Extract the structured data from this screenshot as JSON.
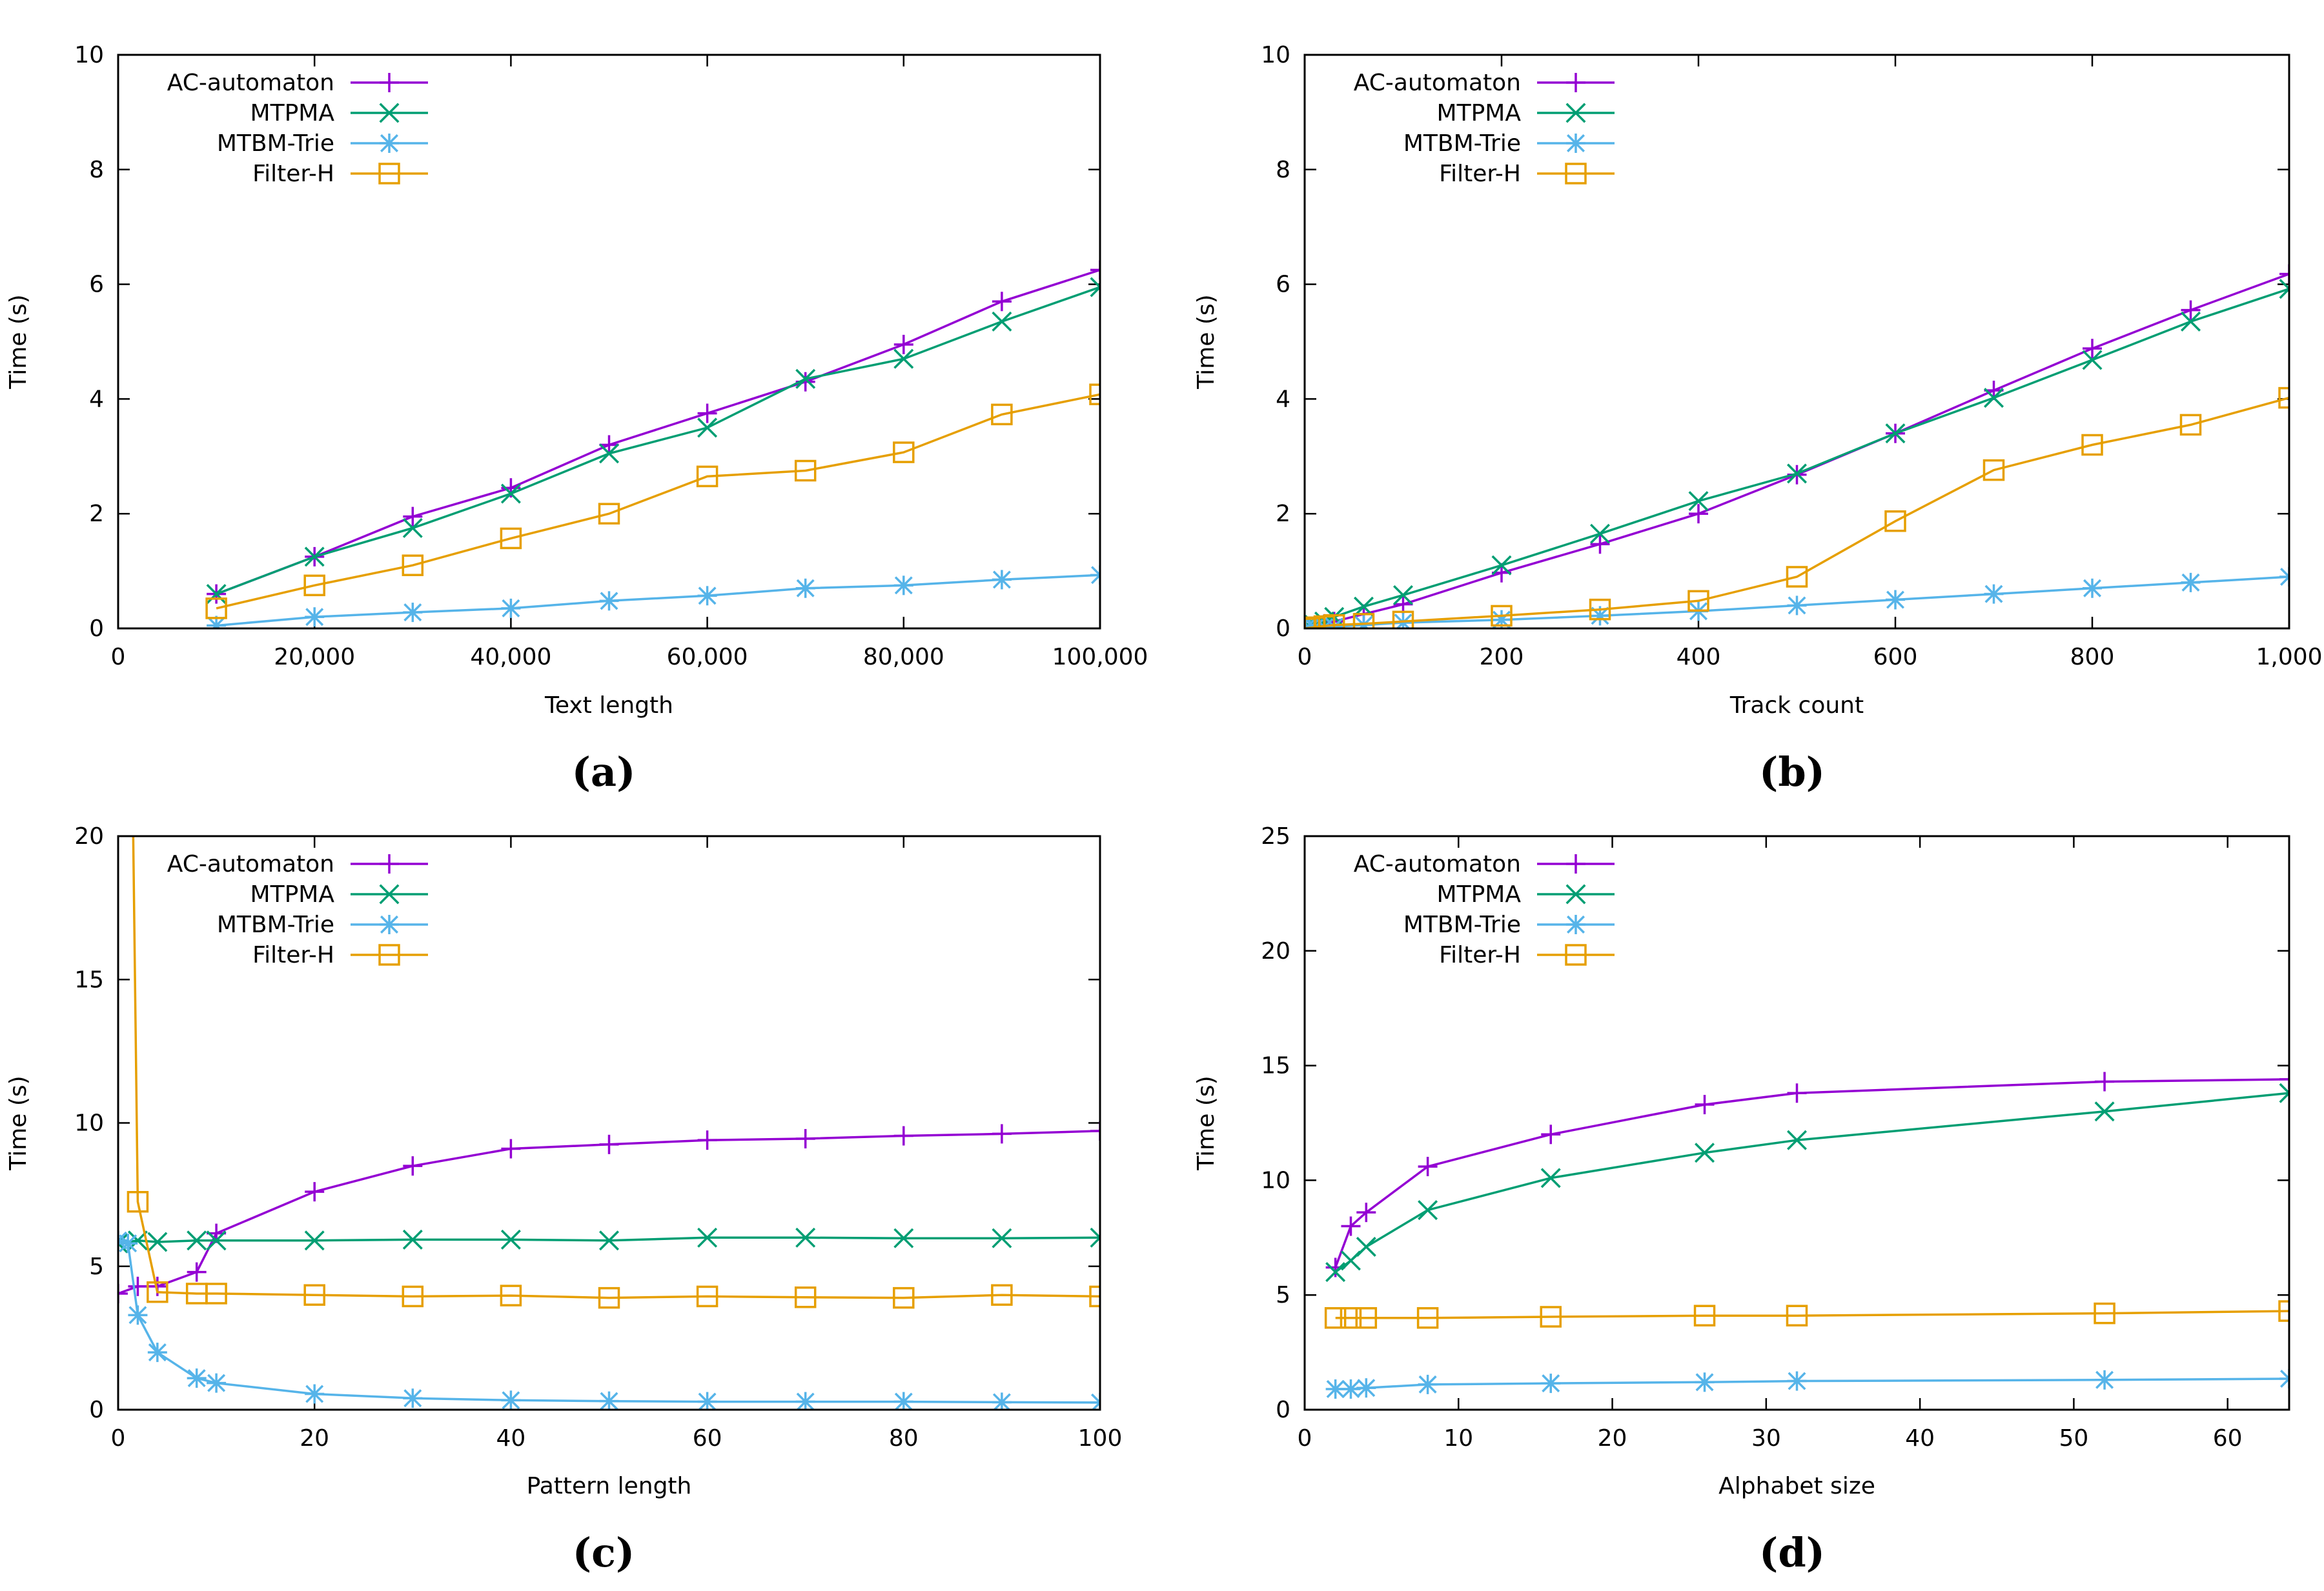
{
  "colors": {
    "AC-automaton": "#9400d3",
    "MTPMA": "#009e73",
    "MTBM-Trie": "#56b4e9",
    "Filter-H": "#e69f00"
  },
  "chart_data": [
    {
      "type": "line",
      "panel": "(a)",
      "xlabel": "Text length",
      "ylabel": "Time (s)",
      "xlim": [
        0,
        100000
      ],
      "ylim": [
        0,
        10
      ],
      "xticks": [
        0,
        20000,
        40000,
        60000,
        80000,
        100000
      ],
      "xtick_labels": [
        "0",
        "20,000",
        "40,000",
        "60,000",
        "80,000",
        "100,000"
      ],
      "yticks": [
        0,
        2,
        4,
        6,
        8,
        10
      ],
      "ytick_labels": [
        "0",
        "2",
        "4",
        "6",
        "8",
        "10"
      ],
      "legend": [
        "AC-automaton",
        "MTPMA",
        "MTBM-Trie",
        "Filter-H"
      ],
      "legend_position": "top-left",
      "series": [
        {
          "name": "AC-automaton",
          "marker": "plus",
          "x": [
            10000,
            20000,
            30000,
            40000,
            50000,
            60000,
            70000,
            80000,
            90000,
            100000
          ],
          "values": [
            0.6,
            1.25,
            1.95,
            2.45,
            3.2,
            3.75,
            4.3,
            4.95,
            5.7,
            6.25
          ]
        },
        {
          "name": "MTPMA",
          "marker": "x",
          "x": [
            10000,
            20000,
            30000,
            40000,
            50000,
            60000,
            70000,
            80000,
            90000,
            100000
          ],
          "values": [
            0.6,
            1.25,
            1.75,
            2.35,
            3.05,
            3.5,
            4.35,
            4.7,
            5.35,
            5.95
          ]
        },
        {
          "name": "MTBM-Trie",
          "marker": "star",
          "x": [
            10000,
            20000,
            30000,
            40000,
            50000,
            60000,
            70000,
            80000,
            90000,
            100000
          ],
          "values": [
            0.05,
            0.2,
            0.28,
            0.35,
            0.48,
            0.57,
            0.7,
            0.75,
            0.85,
            0.93
          ]
        },
        {
          "name": "Filter-H",
          "marker": "square",
          "x": [
            10000,
            20000,
            30000,
            40000,
            50000,
            60000,
            70000,
            80000,
            90000,
            100000
          ],
          "values": [
            0.35,
            0.75,
            1.1,
            1.57,
            2.0,
            2.65,
            2.75,
            3.07,
            3.73,
            4.08
          ]
        }
      ]
    },
    {
      "type": "line",
      "panel": "(b)",
      "xlabel": "Track count",
      "ylabel": "Time (s)",
      "xlim": [
        0,
        1000
      ],
      "ylim": [
        0,
        10
      ],
      "xticks": [
        0,
        200,
        400,
        600,
        800,
        1000
      ],
      "xtick_labels": [
        "0",
        "200",
        "400",
        "600",
        "800",
        "1,000"
      ],
      "yticks": [
        0,
        2,
        4,
        6,
        8,
        10
      ],
      "ytick_labels": [
        "0",
        "2",
        "4",
        "6",
        "8",
        "10"
      ],
      "legend": [
        "AC-automaton",
        "MTPMA",
        "MTBM-Trie",
        "Filter-H"
      ],
      "legend_position": "top-left",
      "series": [
        {
          "name": "AC-automaton",
          "marker": "plus",
          "x": [
            1,
            5,
            10,
            20,
            30,
            60,
            100,
            200,
            300,
            400,
            500,
            600,
            700,
            800,
            900,
            1000
          ],
          "values": [
            0.01,
            0.02,
            0.04,
            0.08,
            0.12,
            0.25,
            0.42,
            0.97,
            1.47,
            2.0,
            2.68,
            3.4,
            4.15,
            4.88,
            5.55,
            6.18
          ]
        },
        {
          "name": "MTPMA",
          "marker": "x",
          "x": [
            1,
            5,
            10,
            20,
            30,
            60,
            100,
            200,
            300,
            400,
            500,
            600,
            700,
            800,
            900,
            1000
          ],
          "values": [
            0.01,
            0.03,
            0.06,
            0.12,
            0.2,
            0.38,
            0.58,
            1.1,
            1.65,
            2.22,
            2.7,
            3.4,
            4.02,
            4.68,
            5.35,
            5.92
          ]
        },
        {
          "name": "MTBM-Trie",
          "marker": "star",
          "x": [
            1,
            5,
            10,
            20,
            30,
            60,
            100,
            200,
            300,
            400,
            500,
            600,
            700,
            800,
            900,
            1000
          ],
          "values": [
            0.0,
            0.0,
            0.01,
            0.02,
            0.03,
            0.06,
            0.1,
            0.15,
            0.22,
            0.3,
            0.4,
            0.5,
            0.6,
            0.7,
            0.8,
            0.9
          ]
        },
        {
          "name": "Filter-H",
          "marker": "square",
          "x": [
            1,
            5,
            10,
            20,
            30,
            60,
            100,
            200,
            300,
            400,
            500,
            600,
            700,
            800,
            900,
            1000
          ],
          "values": [
            0.0,
            0.01,
            0.02,
            0.04,
            0.06,
            0.08,
            0.12,
            0.22,
            0.33,
            0.48,
            0.9,
            1.87,
            2.76,
            3.2,
            3.55,
            4.02
          ]
        }
      ]
    },
    {
      "type": "line",
      "panel": "(c)",
      "xlabel": "Pattern length",
      "ylabel": "Time (s)",
      "xlim": [
        0,
        100
      ],
      "ylim": [
        0,
        20
      ],
      "xticks": [
        0,
        20,
        40,
        60,
        80,
        100
      ],
      "xtick_labels": [
        "0",
        "20",
        "40",
        "60",
        "80",
        "100"
      ],
      "yticks": [
        0,
        5,
        10,
        15,
        20
      ],
      "ytick_labels": [
        "0",
        "5",
        "10",
        "15",
        "20"
      ],
      "legend": [
        "AC-automaton",
        "MTPMA",
        "MTBM-Trie",
        "Filter-H"
      ],
      "legend_position": "top-left",
      "series": [
        {
          "name": "AC-automaton",
          "marker": "plus",
          "x": [
            0,
            2,
            4,
            8,
            10,
            20,
            30,
            40,
            50,
            60,
            70,
            80,
            90,
            100
          ],
          "values": [
            4.05,
            4.3,
            4.3,
            4.8,
            6.15,
            7.6,
            8.5,
            9.1,
            9.25,
            9.4,
            9.45,
            9.55,
            9.62,
            9.72
          ]
        },
        {
          "name": "MTPMA",
          "marker": "x",
          "x": [
            0,
            2,
            4,
            8,
            10,
            20,
            30,
            40,
            50,
            60,
            70,
            80,
            90,
            100
          ],
          "values": [
            5.8,
            5.9,
            5.85,
            5.9,
            5.9,
            5.9,
            5.93,
            5.93,
            5.9,
            6.0,
            6.0,
            5.98,
            5.98,
            6.0
          ]
        },
        {
          "name": "MTBM-Trie",
          "marker": "star",
          "x": [
            0,
            1,
            2,
            4,
            8,
            10,
            20,
            30,
            40,
            50,
            60,
            70,
            80,
            90,
            100
          ],
          "values": [
            5.9,
            5.8,
            3.3,
            2.0,
            1.1,
            0.93,
            0.55,
            0.4,
            0.33,
            0.3,
            0.28,
            0.28,
            0.28,
            0.26,
            0.25
          ]
        },
        {
          "name": "Filter-H",
          "marker": "square",
          "x": [
            2,
            4,
            8,
            10,
            20,
            30,
            40,
            50,
            60,
            70,
            80,
            90,
            100
          ],
          "values": [
            7.25,
            4.1,
            4.05,
            4.05,
            4.0,
            3.95,
            3.98,
            3.9,
            3.95,
            3.92,
            3.9,
            4.0,
            3.95
          ]
        }
      ]
    },
    {
      "type": "line",
      "panel": "(d)",
      "xlabel": "Alphabet size",
      "ylabel": "Time (s)",
      "xlim": [
        0,
        64
      ],
      "ylim": [
        0,
        25
      ],
      "xticks": [
        0,
        10,
        20,
        30,
        40,
        50,
        60
      ],
      "xtick_labels": [
        "0",
        "10",
        "20",
        "30",
        "40",
        "50",
        "60"
      ],
      "yticks": [
        0,
        5,
        10,
        15,
        20,
        25
      ],
      "ytick_labels": [
        "0",
        "5",
        "10",
        "15",
        "20",
        "25"
      ],
      "legend": [
        "AC-automaton",
        "MTPMA",
        "MTBM-Trie",
        "Filter-H"
      ],
      "legend_position": "top-left",
      "series": [
        {
          "name": "AC-automaton",
          "marker": "plus",
          "x": [
            2,
            3,
            4,
            8,
            16,
            26,
            32,
            52,
            64
          ],
          "values": [
            6.2,
            8.0,
            8.6,
            10.6,
            12.0,
            13.3,
            13.8,
            14.3,
            14.4
          ]
        },
        {
          "name": "MTPMA",
          "marker": "x",
          "x": [
            2,
            3,
            4,
            8,
            16,
            26,
            32,
            52,
            64
          ],
          "values": [
            6.0,
            6.5,
            7.1,
            8.7,
            10.1,
            11.2,
            11.75,
            13.0,
            13.8
          ]
        },
        {
          "name": "MTBM-Trie",
          "marker": "star",
          "x": [
            2,
            3,
            4,
            8,
            16,
            26,
            32,
            52,
            64
          ],
          "values": [
            0.9,
            0.9,
            0.95,
            1.1,
            1.15,
            1.2,
            1.25,
            1.3,
            1.35
          ]
        },
        {
          "name": "Filter-H",
          "marker": "square",
          "x": [
            2,
            3,
            4,
            8,
            16,
            26,
            32,
            52,
            64
          ],
          "values": [
            4.0,
            4.0,
            4.0,
            4.0,
            4.05,
            4.1,
            4.1,
            4.2,
            4.3
          ]
        }
      ]
    }
  ]
}
